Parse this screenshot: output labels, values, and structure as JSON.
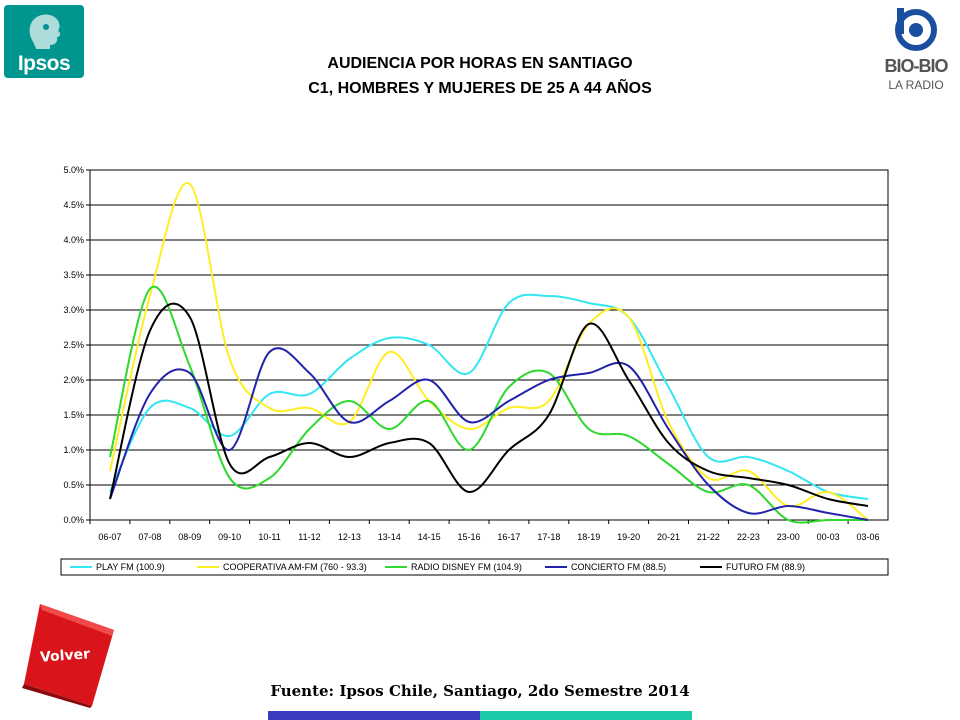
{
  "header": {
    "logo_left": "Ipsos",
    "logo_right": "BIO-BIO",
    "logo_right_sub": "LA RADIO"
  },
  "chart_data": {
    "type": "line",
    "title": "AUDIENCIA POR HORAS EN SANTIAGO",
    "subtitle": "C1, HOMBRES Y MUJERES DE 25 A 44 AÑOS",
    "categories": [
      "06-07",
      "07-08",
      "08-09",
      "09-10",
      "10-11",
      "11-12",
      "12-13",
      "13-14",
      "14-15",
      "15-16",
      "16-17",
      "17-18",
      "18-19",
      "19-20",
      "20-21",
      "21-22",
      "22-23",
      "23-00",
      "00-03",
      "03-06"
    ],
    "yticks": [
      "0.0%",
      "0.5%",
      "1.0%",
      "1.5%",
      "2.0%",
      "2.5%",
      "3.0%",
      "3.5%",
      "4.0%",
      "4.5%",
      "5.0%"
    ],
    "ylim": [
      0,
      5
    ],
    "grid": true,
    "legend_position": "bottom",
    "series": [
      {
        "name": "PLAY FM (100.9)",
        "color": "#33e6f2",
        "values": [
          0.4,
          1.6,
          1.6,
          1.2,
          1.8,
          1.8,
          2.3,
          2.6,
          2.5,
          2.1,
          3.1,
          3.2,
          3.1,
          2.9,
          1.9,
          0.9,
          0.9,
          0.7,
          0.4,
          0.3
        ]
      },
      {
        "name": "COOPERATIVA AM-FM (760 - 93.3)",
        "color": "#ffee22",
        "values": [
          0.7,
          3.2,
          4.8,
          2.3,
          1.6,
          1.6,
          1.4,
          2.4,
          1.7,
          1.3,
          1.6,
          1.7,
          2.8,
          2.9,
          1.4,
          0.6,
          0.7,
          0.2,
          0.4,
          0.0
        ]
      },
      {
        "name": "RADIO DISNEY FM (104.9)",
        "color": "#2ed82e",
        "values": [
          0.9,
          3.3,
          2.2,
          0.6,
          0.6,
          1.3,
          1.7,
          1.3,
          1.7,
          1.0,
          1.9,
          2.1,
          1.3,
          1.2,
          0.8,
          0.4,
          0.5,
          0.0,
          0.0,
          0.0
        ]
      },
      {
        "name": "CONCIERTO FM (88.5)",
        "color": "#2222aa",
        "values": [
          0.3,
          1.8,
          2.1,
          1.0,
          2.4,
          2.1,
          1.4,
          1.7,
          2.0,
          1.4,
          1.7,
          2.0,
          2.1,
          2.2,
          1.3,
          0.5,
          0.1,
          0.2,
          0.1,
          0.0
        ]
      },
      {
        "name": "FUTURO FM (88.9)",
        "color": "#000000",
        "values": [
          0.3,
          2.7,
          2.9,
          0.8,
          0.9,
          1.1,
          0.9,
          1.1,
          1.1,
          0.4,
          1.0,
          1.5,
          2.8,
          2.0,
          1.1,
          0.7,
          0.6,
          0.5,
          0.3,
          0.2
        ]
      }
    ]
  },
  "footer": {
    "volver_label": "Volver",
    "source": "Fuente: Ipsos Chile, Santiago, 2do Semestre 2014"
  }
}
